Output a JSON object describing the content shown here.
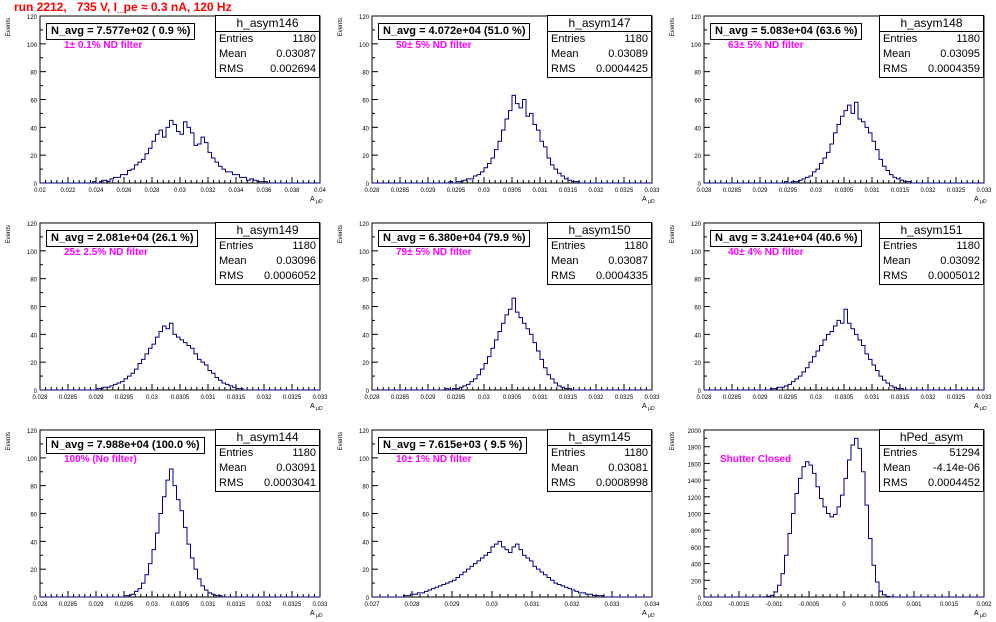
{
  "header": {
    "run_title": "run 2212,   735 V, I_pe ≈ 0.3 nA, 120 Hz"
  },
  "colors": {
    "line": "#000080",
    "title": "#ff0000",
    "note": "#ff00ff"
  },
  "chart_data": [
    {
      "type": "histogram",
      "name": "h_asym146",
      "nlabel": "N_avg = 7.577e+02 ( 0.9 %)",
      "note": "1± 0.1% ND filter",
      "stats": {
        "Entries": "1180",
        "Mean": "0.03087",
        "RMS": "0.002694"
      },
      "ylabel": "Events",
      "xlabel": "A_{μD}",
      "xlim": [
        0.02,
        0.042
      ],
      "ylim": [
        0,
        120
      ],
      "yticks": [
        "0",
        "20",
        "40",
        "60",
        "80",
        "100",
        "120"
      ],
      "xticks": [
        "0.02",
        "0.022",
        "0.024",
        "0.026",
        "0.028",
        "0.03",
        "0.032",
        "0.034",
        "0.036",
        "0.038",
        "0.04"
      ],
      "values": [
        0,
        0,
        0,
        0,
        0,
        0,
        0,
        0,
        0,
        0,
        0,
        0,
        0,
        0,
        0,
        1,
        0,
        1,
        2,
        1,
        3,
        4,
        4,
        6,
        6,
        9,
        10,
        13,
        15,
        17,
        21,
        25,
        30,
        35,
        38,
        33,
        40,
        45,
        42,
        37,
        35,
        44,
        40,
        36,
        27,
        28,
        33,
        29,
        22,
        18,
        15,
        12,
        10,
        8,
        8,
        6,
        6,
        4,
        4,
        2,
        3,
        2,
        1,
        1,
        1,
        0,
        0,
        0,
        0,
        0,
        0,
        0,
        0,
        0,
        0,
        0,
        0,
        0,
        0,
        0
      ]
    },
    {
      "type": "histogram",
      "name": "h_asym147",
      "nlabel": "N_avg = 4.072e+04 (51.0 %)",
      "note": "50± 5% ND filter",
      "stats": {
        "Entries": "1180",
        "Mean": "0.03089",
        "RMS": "0.0004425"
      },
      "ylabel": "Events",
      "xlabel": "A_{μD}",
      "xlim": [
        0.028,
        0.033
      ],
      "ylim": [
        0,
        120
      ],
      "yticks": [
        "0",
        "20",
        "40",
        "60",
        "80",
        "100",
        "120"
      ],
      "xticks": [
        "0.028",
        "0.0285",
        "0.029",
        "0.0295",
        "0.03",
        "0.0305",
        "0.031",
        "0.0315",
        "0.032",
        "0.0325",
        "0.033"
      ],
      "values": [
        0,
        0,
        0,
        0,
        0,
        0,
        0,
        0,
        0,
        0,
        0,
        0,
        0,
        0,
        0,
        0,
        0,
        0,
        0,
        0,
        0,
        0,
        1,
        0,
        1,
        1,
        2,
        3,
        3,
        5,
        6,
        8,
        11,
        14,
        18,
        24,
        30,
        38,
        46,
        52,
        63,
        57,
        54,
        60,
        48,
        50,
        42,
        38,
        30,
        26,
        18,
        13,
        10,
        7,
        5,
        3,
        2,
        1,
        1,
        0,
        0,
        0,
        0,
        0,
        0,
        0,
        0,
        0,
        0,
        0,
        0,
        0,
        0,
        0,
        0,
        0,
        0,
        0,
        0,
        0
      ]
    },
    {
      "type": "histogram",
      "name": "h_asym148",
      "nlabel": "N_avg = 5.083e+04 (63.6 %)",
      "note": "63± 5% ND filter",
      "stats": {
        "Entries": "1180",
        "Mean": "0.03095",
        "RMS": "0.0004359"
      },
      "ylabel": "Events",
      "xlabel": "A_{μD}",
      "xlim": [
        0.028,
        0.033
      ],
      "ylim": [
        0,
        120
      ],
      "yticks": [
        "0",
        "20",
        "40",
        "60",
        "80",
        "100",
        "120"
      ],
      "xticks": [
        "0.028",
        "0.0285",
        "0.029",
        "0.0295",
        "0.03",
        "0.0305",
        "0.031",
        "0.0315",
        "0.032",
        "0.0325",
        "0.033"
      ],
      "values": [
        0,
        0,
        0,
        0,
        0,
        0,
        0,
        0,
        0,
        0,
        0,
        0,
        0,
        0,
        0,
        0,
        0,
        0,
        0,
        0,
        0,
        0,
        0,
        1,
        0,
        1,
        1,
        2,
        3,
        4,
        5,
        8,
        10,
        14,
        18,
        22,
        28,
        36,
        42,
        48,
        52,
        56,
        50,
        58,
        46,
        44,
        40,
        36,
        30,
        24,
        17,
        12,
        9,
        6,
        4,
        3,
        2,
        1,
        1,
        0,
        0,
        0,
        0,
        0,
        0,
        0,
        0,
        0,
        0,
        0,
        0,
        0,
        0,
        0,
        0,
        0,
        0,
        0,
        0,
        0
      ]
    },
    {
      "type": "histogram",
      "name": "h_asym149",
      "nlabel": "N_avg = 2.081e+04 (26.1 %)",
      "note": "25± 2.5% ND filter",
      "stats": {
        "Entries": "1180",
        "Mean": "0.03096",
        "RMS": "0.0006052"
      },
      "ylabel": "Events",
      "xlabel": "A_{μD}",
      "xlim": [
        0.028,
        0.033
      ],
      "ylim": [
        0,
        120
      ],
      "yticks": [
        "0",
        "20",
        "40",
        "60",
        "80",
        "100",
        "120"
      ],
      "xticks": [
        "0.028",
        "0.0285",
        "0.029",
        "0.0295",
        "0.03",
        "0.0305",
        "0.031",
        "0.0315",
        "0.032",
        "0.0325",
        "0.033"
      ],
      "values": [
        0,
        0,
        0,
        0,
        0,
        0,
        0,
        0,
        0,
        0,
        0,
        0,
        0,
        0,
        0,
        0,
        1,
        1,
        2,
        2,
        3,
        4,
        5,
        6,
        8,
        10,
        12,
        15,
        19,
        22,
        26,
        30,
        33,
        38,
        42,
        46,
        44,
        48,
        40,
        38,
        36,
        34,
        32,
        30,
        26,
        22,
        20,
        18,
        14,
        12,
        9,
        7,
        5,
        4,
        3,
        2,
        1,
        1,
        0,
        0,
        0,
        0,
        0,
        0,
        0,
        0,
        0,
        0,
        0,
        0,
        0,
        0,
        0,
        0,
        0,
        0,
        0,
        0,
        0,
        0
      ]
    },
    {
      "type": "histogram",
      "name": "h_asym150",
      "nlabel": "N_avg = 6.380e+04 (79.9 %)",
      "note": "79± 5% ND filter",
      "stats": {
        "Entries": "1180",
        "Mean": "0.03087",
        "RMS": "0.0004335"
      },
      "ylabel": "Events",
      "xlabel": "A_{μD}",
      "xlim": [
        0.028,
        0.033
      ],
      "ylim": [
        0,
        120
      ],
      "yticks": [
        "0",
        "20",
        "40",
        "60",
        "80",
        "100",
        "120"
      ],
      "xticks": [
        "0.028",
        "0.0285",
        "0.029",
        "0.0295",
        "0.03",
        "0.0305",
        "0.031",
        "0.0315",
        "0.032",
        "0.0325",
        "0.033"
      ],
      "values": [
        0,
        0,
        0,
        0,
        0,
        0,
        0,
        0,
        0,
        0,
        0,
        0,
        0,
        0,
        0,
        0,
        0,
        0,
        0,
        0,
        0,
        1,
        0,
        1,
        1,
        2,
        3,
        4,
        6,
        8,
        11,
        15,
        19,
        24,
        30,
        36,
        42,
        48,
        54,
        58,
        66,
        56,
        52,
        48,
        44,
        40,
        34,
        28,
        22,
        16,
        11,
        8,
        5,
        3,
        2,
        1,
        1,
        0,
        0,
        0,
        0,
        0,
        0,
        0,
        0,
        0,
        0,
        0,
        0,
        0,
        0,
        0,
        0,
        0,
        0,
        0,
        0,
        0,
        0,
        0
      ]
    },
    {
      "type": "histogram",
      "name": "h_asym151",
      "nlabel": "N_avg = 3.241e+04 (40.6 %)",
      "note": "40± 4% ND filter",
      "stats": {
        "Entries": "1180",
        "Mean": "0.03092",
        "RMS": "0.0005012"
      },
      "ylabel": "Events",
      "xlabel": "A_{μD}",
      "xlim": [
        0.028,
        0.033
      ],
      "ylim": [
        0,
        120
      ],
      "yticks": [
        "0",
        "20",
        "40",
        "60",
        "80",
        "100",
        "120"
      ],
      "xticks": [
        "0.028",
        "0.0285",
        "0.029",
        "0.0295",
        "0.03",
        "0.0305",
        "0.031",
        "0.0315",
        "0.032",
        "0.0325",
        "0.033"
      ],
      "values": [
        0,
        0,
        0,
        0,
        0,
        0,
        0,
        0,
        0,
        0,
        0,
        0,
        0,
        0,
        0,
        0,
        0,
        0,
        0,
        1,
        1,
        2,
        2,
        3,
        4,
        6,
        8,
        10,
        13,
        16,
        20,
        24,
        28,
        32,
        36,
        40,
        42,
        46,
        50,
        48,
        58,
        48,
        44,
        40,
        36,
        32,
        26,
        22,
        18,
        14,
        10,
        7,
        5,
        3,
        2,
        1,
        1,
        0,
        0,
        0,
        0,
        0,
        0,
        0,
        0,
        0,
        0,
        0,
        0,
        0,
        0,
        0,
        0,
        0,
        0,
        0,
        0,
        0,
        0,
        0
      ]
    },
    {
      "type": "histogram",
      "name": "h_asym144",
      "nlabel": "N_avg = 7.988e+04 (100.0 %)",
      "note": "100% (No filter)",
      "stats": {
        "Entries": "1180",
        "Mean": "0.03091",
        "RMS": "0.0003041"
      },
      "ylabel": "Events",
      "xlabel": "A_{μD}",
      "xlim": [
        0.028,
        0.033
      ],
      "ylim": [
        0,
        120
      ],
      "yticks": [
        "0",
        "20",
        "40",
        "60",
        "80",
        "100",
        "120"
      ],
      "xticks": [
        "0.028",
        "0.0285",
        "0.029",
        "0.0295",
        "0.03",
        "0.0305",
        "0.031",
        "0.0315",
        "0.032",
        "0.0325",
        "0.033"
      ],
      "values": [
        0,
        0,
        0,
        0,
        0,
        0,
        0,
        0,
        0,
        0,
        0,
        0,
        0,
        0,
        0,
        0,
        0,
        0,
        0,
        0,
        0,
        0,
        0,
        0,
        1,
        1,
        2,
        4,
        6,
        10,
        16,
        24,
        34,
        46,
        60,
        72,
        84,
        92,
        80,
        70,
        62,
        50,
        38,
        28,
        20,
        13,
        8,
        5,
        3,
        2,
        1,
        1,
        0,
        0,
        0,
        0,
        0,
        0,
        0,
        0,
        0,
        0,
        0,
        0,
        0,
        0,
        0,
        0,
        0,
        0,
        0,
        0,
        0,
        0,
        0,
        0,
        0,
        0,
        0,
        0
      ]
    },
    {
      "type": "histogram",
      "name": "h_asym145",
      "nlabel": "N_avg = 7.615e+03 ( 9.5 %)",
      "note": "10± 1% ND filter",
      "stats": {
        "Entries": "1180",
        "Mean": "0.03081",
        "RMS": "0.0008998"
      },
      "ylabel": "Events",
      "xlabel": "A_{μD}",
      "xlim": [
        0.027,
        0.034
      ],
      "ylim": [
        0,
        120
      ],
      "yticks": [
        "0",
        "20",
        "40",
        "60",
        "80",
        "100",
        "120"
      ],
      "xticks": [
        "0.027",
        "0.028",
        "0.029",
        "0.03",
        "0.031",
        "0.032",
        "0.033",
        "0.034"
      ],
      "values": [
        0,
        0,
        0,
        0,
        0,
        0,
        0,
        0,
        0,
        1,
        1,
        2,
        2,
        3,
        3,
        4,
        5,
        6,
        7,
        8,
        9,
        10,
        11,
        12,
        14,
        16,
        18,
        20,
        22,
        24,
        26,
        28,
        30,
        32,
        36,
        38,
        40,
        36,
        34,
        32,
        36,
        38,
        34,
        30,
        28,
        26,
        22,
        20,
        18,
        16,
        14,
        12,
        10,
        9,
        8,
        7,
        6,
        5,
        4,
        3,
        3,
        2,
        2,
        1,
        1,
        1,
        0,
        0,
        0,
        0,
        0,
        0,
        0,
        0,
        0,
        0,
        0,
        0,
        0,
        0
      ]
    },
    {
      "type": "histogram",
      "name": "hPed_asym",
      "nlabel": "",
      "note": "Shutter Closed",
      "stats": {
        "Entries": "51294",
        "Mean": "-4.14e-06",
        "RMS": "0.0004452"
      },
      "ylabel": "Events",
      "xlabel": "A_{μD}",
      "xlim": [
        -0.002,
        0.002
      ],
      "ylim": [
        0,
        2000
      ],
      "yticks": [
        "0",
        "200",
        "400",
        "600",
        "800",
        "1000",
        "1200",
        "1400",
        "1600",
        "1800",
        "2000"
      ],
      "xticks": [
        "-0.002",
        "-0.0015",
        "-0.001",
        "-0.0005",
        "0",
        "0.0005",
        "0.001",
        "0.0015",
        "0.002"
      ],
      "values": [
        0,
        0,
        0,
        0,
        0,
        0,
        0,
        0,
        0,
        0,
        0,
        0,
        0,
        0,
        0,
        0,
        0,
        2,
        8,
        20,
        60,
        140,
        280,
        500,
        760,
        1000,
        1240,
        1420,
        1560,
        1620,
        1580,
        1480,
        1320,
        1180,
        1080,
        1000,
        960,
        990,
        1080,
        1220,
        1420,
        1640,
        1820,
        1900,
        1780,
        1500,
        1100,
        700,
        380,
        180,
        70,
        25,
        8,
        2,
        0,
        0,
        0,
        0,
        0,
        0,
        0,
        0,
        0,
        0,
        0,
        0,
        0,
        0,
        0,
        0,
        0,
        0,
        0,
        0,
        0,
        0,
        0,
        0,
        0,
        0
      ]
    }
  ]
}
